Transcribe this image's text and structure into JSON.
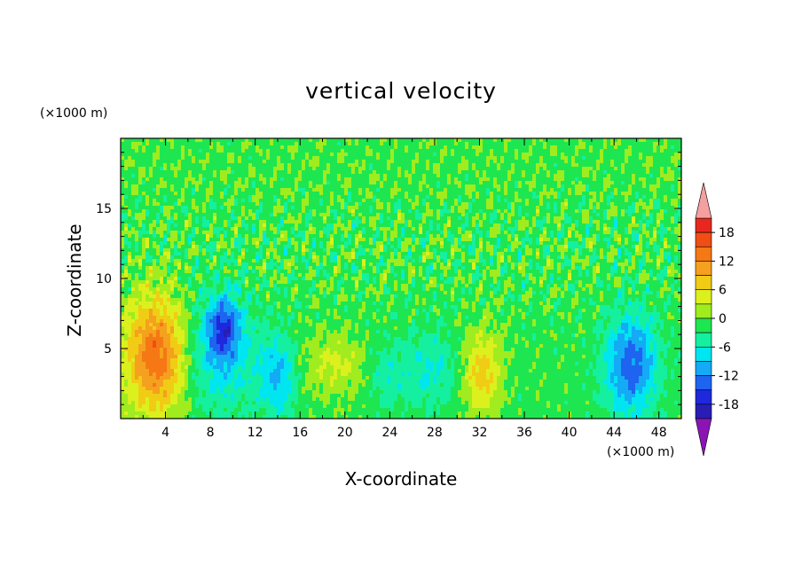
{
  "chart_data": {
    "type": "heatmap",
    "title": "vertical velocity",
    "xlabel": "X-coordinate",
    "ylabel": "Z-coordinate",
    "x_unit": "(×1000 m)",
    "y_unit": "(×1000 m)",
    "xlim": [
      0,
      50
    ],
    "ylim": [
      0,
      20
    ],
    "x_ticks": [
      4,
      8,
      12,
      16,
      20,
      24,
      28,
      32,
      36,
      40,
      44,
      48
    ],
    "y_ticks": [
      5,
      10,
      15
    ],
    "colorbar": {
      "min": -21,
      "max": 21,
      "step": 3,
      "tick_labels": [
        18,
        12,
        6,
        0,
        -6,
        -12,
        -18
      ],
      "levels": [
        {
          "from": 18,
          "to": 21,
          "color": "#e8281e"
        },
        {
          "from": 15,
          "to": 18,
          "color": "#f04e14"
        },
        {
          "from": 12,
          "to": 15,
          "color": "#f57814"
        },
        {
          "from": 9,
          "to": 12,
          "color": "#f5a01e"
        },
        {
          "from": 6,
          "to": 9,
          "color": "#f0cd14"
        },
        {
          "from": 3,
          "to": 6,
          "color": "#dcf01e"
        },
        {
          "from": 0,
          "to": 3,
          "color": "#a0ec1e"
        },
        {
          "from": -3,
          "to": 0,
          "color": "#1ee650"
        },
        {
          "from": -6,
          "to": -3,
          "color": "#14f0a0"
        },
        {
          "from": -9,
          "to": -6,
          "color": "#00e6f0"
        },
        {
          "from": -12,
          "to": -9,
          "color": "#14aaf5"
        },
        {
          "from": -15,
          "to": -12,
          "color": "#1e64f0"
        },
        {
          "from": -18,
          "to": -15,
          "color": "#1e28dc"
        },
        {
          "from": -21,
          "to": -18,
          "color": "#281eb4"
        }
      ],
      "over_color": "#f5a0a0",
      "under_color": "#8c14b4"
    },
    "features": [
      {
        "x": 3.2,
        "z": 4.5,
        "peak": 16,
        "sx": 2.0,
        "sz": 3.0
      },
      {
        "x": 32.2,
        "z": 3.3,
        "peak": 9,
        "sx": 1.2,
        "sz": 2.0
      },
      {
        "x": 19.0,
        "z": 3.8,
        "peak": 5,
        "sx": 2.0,
        "sz": 1.5
      },
      {
        "x": 9.2,
        "z": 6.5,
        "peak": -11,
        "sx": 1.0,
        "sz": 1.5
      },
      {
        "x": 8.5,
        "z": 4.5,
        "peak": -7,
        "sx": 2.5,
        "sz": 3.0
      },
      {
        "x": 14.0,
        "z": 3.0,
        "peak": -8,
        "sx": 1.2,
        "sz": 2.0
      },
      {
        "x": 45.5,
        "z": 3.8,
        "peak": -13,
        "sx": 1.6,
        "sz": 2.5
      },
      {
        "x": 27.5,
        "z": 3.5,
        "peak": -5,
        "sx": 2.0,
        "sz": 2.0
      },
      {
        "x": 23.5,
        "z": 3.0,
        "peak": -4,
        "sx": 1.0,
        "sz": 1.5
      }
    ],
    "grid": false,
    "legend": "right"
  }
}
